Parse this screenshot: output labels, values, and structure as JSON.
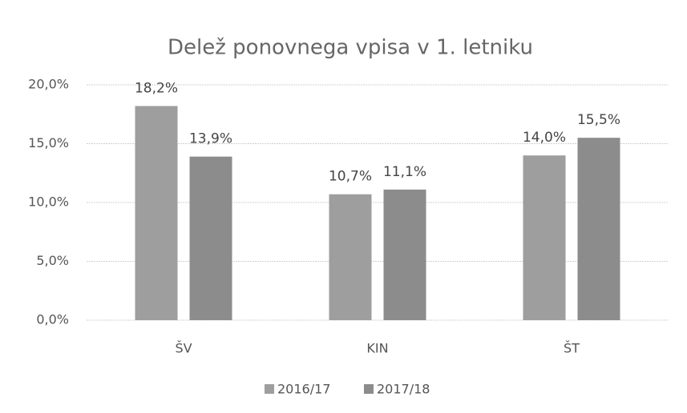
{
  "chart_data": {
    "type": "bar",
    "title": "Delež ponovnega vpisa v 1. letniku",
    "categories": [
      "ŠV",
      "KIN",
      "ŠT"
    ],
    "series": [
      {
        "name": "2016/17",
        "color": "#9e9e9e",
        "values": [
          18.2,
          10.7,
          14.0
        ],
        "value_labels": [
          "18,2%",
          "10,7%",
          "14,0%"
        ]
      },
      {
        "name": "2017/18",
        "color": "#8c8c8c",
        "values": [
          13.9,
          11.1,
          15.5
        ],
        "value_labels": [
          "13,9%",
          "11,1%",
          "15,5%"
        ]
      }
    ],
    "ylim": [
      0,
      20
    ],
    "yticks": [
      {
        "value": 0,
        "label": "0,0%"
      },
      {
        "value": 5,
        "label": "5,0%"
      },
      {
        "value": 10,
        "label": "10,0%"
      },
      {
        "value": 15,
        "label": "15,0%"
      },
      {
        "value": 20,
        "label": "20,0%"
      }
    ],
    "grid": true,
    "legend": "bottom"
  }
}
